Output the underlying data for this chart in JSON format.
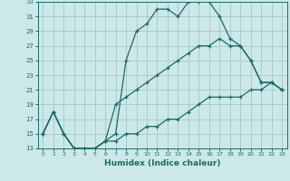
{
  "xlabel": "Humidex (Indice chaleur)",
  "xlim": [
    -0.5,
    23.5
  ],
  "ylim": [
    13,
    33
  ],
  "xticks": [
    0,
    1,
    2,
    3,
    4,
    5,
    6,
    7,
    8,
    9,
    10,
    11,
    12,
    13,
    14,
    15,
    16,
    17,
    18,
    19,
    20,
    21,
    22,
    23
  ],
  "yticks": [
    13,
    15,
    17,
    19,
    21,
    23,
    25,
    27,
    29,
    31,
    33
  ],
  "bg_color": "#cce8e8",
  "grid_color": "#aacccc",
  "line_color": "#1a6b6b",
  "line1_x": [
    0,
    1,
    2,
    3,
    4,
    5,
    6,
    7,
    8,
    9,
    10,
    11,
    12,
    13,
    14,
    15,
    16,
    17,
    18,
    19,
    20,
    21,
    22,
    23
  ],
  "line1_y": [
    15,
    18,
    15,
    13,
    13,
    13,
    14,
    15,
    25,
    29,
    30,
    32,
    32,
    31,
    33,
    33,
    33,
    31,
    28,
    27,
    25,
    22,
    22,
    21
  ],
  "line2_x": [
    0,
    1,
    2,
    3,
    4,
    5,
    6,
    7,
    8,
    9,
    10,
    11,
    12,
    13,
    14,
    15,
    16,
    17,
    18,
    19,
    20,
    21,
    22,
    23
  ],
  "line2_y": [
    15,
    18,
    15,
    13,
    13,
    13,
    14,
    19,
    20,
    21,
    22,
    23,
    24,
    25,
    26,
    27,
    27,
    28,
    27,
    27,
    25,
    22,
    22,
    21
  ],
  "line3_x": [
    0,
    1,
    2,
    3,
    4,
    5,
    6,
    7,
    8,
    9,
    10,
    11,
    12,
    13,
    14,
    15,
    16,
    17,
    18,
    19,
    20,
    21,
    22,
    23
  ],
  "line3_y": [
    15,
    18,
    15,
    13,
    13,
    13,
    14,
    14,
    15,
    15,
    16,
    16,
    17,
    17,
    18,
    19,
    20,
    20,
    20,
    20,
    21,
    21,
    22,
    21
  ]
}
